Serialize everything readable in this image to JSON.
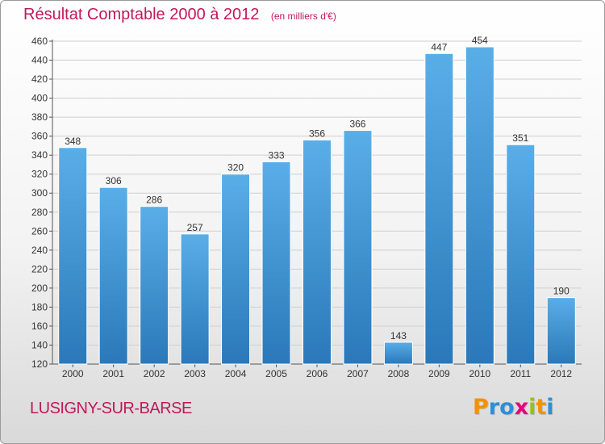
{
  "title": "Résultat Comptable 2000 à 2012",
  "subtitle": "(en milliers d'€)",
  "footer_label": "LUSIGNY-SUR-BARSE",
  "logo": {
    "text": "Proxiti",
    "letter_colors": [
      "#f39200",
      "#2d8fd5",
      "#2d8fd5",
      "#e6007e",
      "#95c11f",
      "#f39200",
      "#2d8fd5"
    ]
  },
  "colors": {
    "bar_top": "#5aaee8",
    "bar_bottom": "#2a78b9",
    "grid": "#cfcfcf",
    "title": "#c2185b"
  },
  "chart_data": {
    "type": "bar",
    "title": "Résultat Comptable 2000 à 2012",
    "subtitle": "(en milliers d'€)",
    "categories": [
      "2000",
      "2001",
      "2002",
      "2003",
      "2004",
      "2005",
      "2006",
      "2007",
      "2008",
      "2009",
      "2010",
      "2011",
      "2012"
    ],
    "values": [
      348,
      306,
      286,
      257,
      320,
      333,
      356,
      366,
      143,
      447,
      454,
      351,
      190
    ],
    "ylim": [
      120,
      460
    ],
    "yticks": [
      120,
      140,
      160,
      180,
      200,
      220,
      240,
      260,
      280,
      300,
      320,
      340,
      360,
      380,
      400,
      420,
      440,
      460
    ],
    "grid": true,
    "legend": false
  }
}
